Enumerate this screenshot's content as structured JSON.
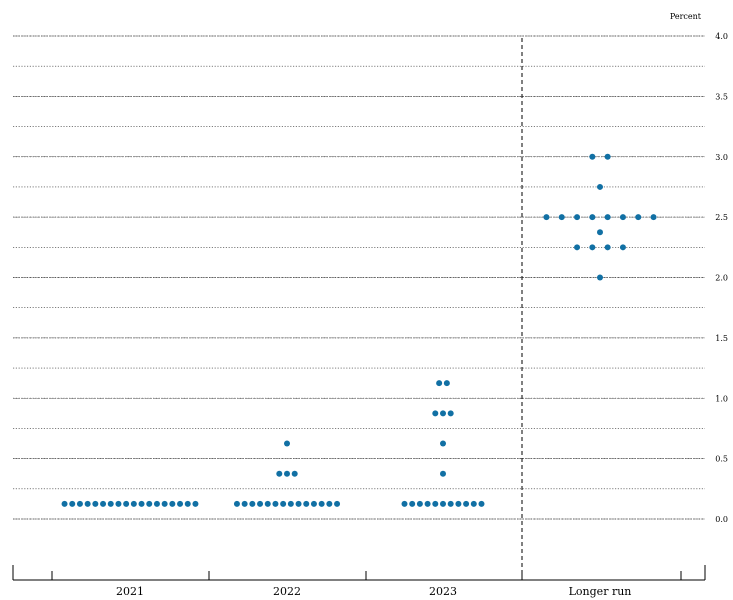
{
  "chart_data": {
    "type": "scatter",
    "unit_label": "Percent",
    "categories": [
      "2021",
      "2022",
      "2023",
      "Longer run"
    ],
    "y_ticks": [
      {
        "value": 4.0,
        "label": "4.0"
      },
      {
        "value": 3.5,
        "label": "3.5"
      },
      {
        "value": 3.0,
        "label": "3.0"
      },
      {
        "value": 2.5,
        "label": "2.5"
      },
      {
        "value": 2.0,
        "label": "2.0"
      },
      {
        "value": 1.5,
        "label": "1.5"
      },
      {
        "value": 1.0,
        "label": "1.0"
      },
      {
        "value": 0.5,
        "label": "0.5"
      },
      {
        "value": 0.0,
        "label": "0.0"
      }
    ],
    "ylim": [
      -0.25,
      4.0
    ],
    "grid": true,
    "dot_color": "#1170a4",
    "points": [
      {
        "category": "2021",
        "value": 0.125,
        "count": 18
      },
      {
        "category": "2022",
        "value": 0.125,
        "count": 14
      },
      {
        "category": "2022",
        "value": 0.375,
        "count": 3
      },
      {
        "category": "2022",
        "value": 0.625,
        "count": 1
      },
      {
        "category": "2023",
        "value": 0.125,
        "count": 11
      },
      {
        "category": "2023",
        "value": 0.375,
        "count": 1
      },
      {
        "category": "2023",
        "value": 0.625,
        "count": 1
      },
      {
        "category": "2023",
        "value": 0.875,
        "count": 3
      },
      {
        "category": "2023",
        "value": 1.125,
        "count": 2
      },
      {
        "category": "Longer run",
        "value": 2.0,
        "count": 1
      },
      {
        "category": "Longer run",
        "value": 2.25,
        "count": 4
      },
      {
        "category": "Longer run",
        "value": 2.375,
        "count": 1
      },
      {
        "category": "Longer run",
        "value": 2.5,
        "count": 8
      },
      {
        "category": "Longer run",
        "value": 2.75,
        "count": 1
      },
      {
        "category": "Longer run",
        "value": 3.0,
        "count": 2
      }
    ]
  }
}
